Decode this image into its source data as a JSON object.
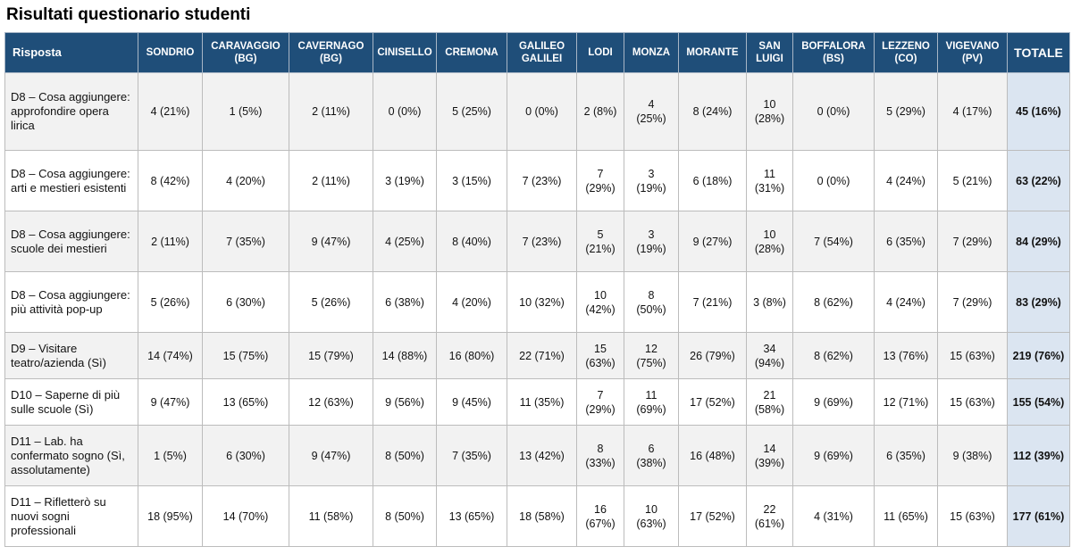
{
  "title": "Risultati questionario studenti",
  "columns": {
    "risposta": "Risposta",
    "schools": [
      "SONDRIO",
      "CARAVAGGIO\n(BG)",
      "CAVERNAGO\n(BG)",
      "CINISELLO",
      "CREMONA",
      "GALILEO\nGALILEI",
      "LODI",
      "MONZA",
      "MORANTE",
      "SAN\nLUIGI",
      "BOFFALORA\n(BS)",
      "LEZZENO\n(CO)",
      "VIGEVANO\n(PV)"
    ],
    "totale": "TOTALE"
  },
  "rows": [
    {
      "label": "D8 – Cosa aggiungere: approfondire opera lirica",
      "cells": [
        "4 (21%)",
        "1 (5%)",
        "2 (11%)",
        "0 (0%)",
        "5 (25%)",
        "0 (0%)",
        "2 (8%)",
        "4\n(25%)",
        "8 (24%)",
        "10\n(28%)",
        "0 (0%)",
        "5 (29%)",
        "4 (17%)"
      ],
      "total": "45 (16%)"
    },
    {
      "label": "D8 – Cosa aggiungere: arti e mestieri esistenti",
      "cells": [
        "8 (42%)",
        "4 (20%)",
        "2 (11%)",
        "3 (19%)",
        "3 (15%)",
        "7 (23%)",
        "7\n(29%)",
        "3\n(19%)",
        "6 (18%)",
        "11\n(31%)",
        "0 (0%)",
        "4 (24%)",
        "5 (21%)"
      ],
      "total": "63 (22%)"
    },
    {
      "label": "D8 – Cosa aggiungere: scuole dei mestieri",
      "cells": [
        "2 (11%)",
        "7 (35%)",
        "9 (47%)",
        "4 (25%)",
        "8 (40%)",
        "7 (23%)",
        "5\n(21%)",
        "3\n(19%)",
        "9 (27%)",
        "10\n(28%)",
        "7 (54%)",
        "6 (35%)",
        "7 (29%)"
      ],
      "total": "84 (29%)"
    },
    {
      "label": "D8 – Cosa aggiungere: più attività pop-up",
      "cells": [
        "5 (26%)",
        "6 (30%)",
        "5 (26%)",
        "6 (38%)",
        "4 (20%)",
        "10 (32%)",
        "10\n(42%)",
        "8\n(50%)",
        "7 (21%)",
        "3 (8%)",
        "8 (62%)",
        "4 (24%)",
        "7 (29%)"
      ],
      "total": "83 (29%)"
    },
    {
      "label": "D9 – Visitare teatro/azienda (Sì)",
      "cells": [
        "14 (74%)",
        "15 (75%)",
        "15 (79%)",
        "14 (88%)",
        "16 (80%)",
        "22 (71%)",
        "15\n(63%)",
        "12\n(75%)",
        "26 (79%)",
        "34\n(94%)",
        "8 (62%)",
        "13 (76%)",
        "15 (63%)"
      ],
      "total": "219 (76%)"
    },
    {
      "label": "D10 – Saperne di più sulle scuole (Sì)",
      "cells": [
        "9 (47%)",
        "13 (65%)",
        "12 (63%)",
        "9 (56%)",
        "9 (45%)",
        "11 (35%)",
        "7\n(29%)",
        "11\n(69%)",
        "17 (52%)",
        "21\n(58%)",
        "9 (69%)",
        "12 (71%)",
        "15 (63%)"
      ],
      "total": "155 (54%)"
    },
    {
      "label": "D11 – Lab. ha confermato sogno (Sì, assolutamente)",
      "cells": [
        "1 (5%)",
        "6 (30%)",
        "9 (47%)",
        "8 (50%)",
        "7 (35%)",
        "13 (42%)",
        "8\n(33%)",
        "6\n(38%)",
        "16 (48%)",
        "14\n(39%)",
        "9 (69%)",
        "6 (35%)",
        "9 (38%)"
      ],
      "total": "112 (39%)"
    },
    {
      "label": "D11 – Rifletterò su nuovi sogni professionali",
      "cells": [
        "18 (95%)",
        "14 (70%)",
        "11 (58%)",
        "8 (50%)",
        "13 (65%)",
        "18 (58%)",
        "16\n(67%)",
        "10\n(63%)",
        "17 (52%)",
        "22\n(61%)",
        "4 (31%)",
        "11 (65%)",
        "15 (63%)"
      ],
      "total": "177 (61%)"
    }
  ],
  "colors": {
    "header_bg": "#1f4e79",
    "header_text": "#ffffff",
    "row_alt_bg": "#f2f2f2",
    "total_col_bg": "#dbe5f1"
  }
}
